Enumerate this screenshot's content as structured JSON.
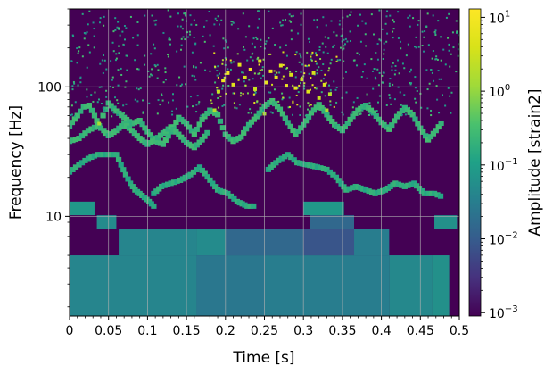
{
  "chart_data": {
    "type": "heatmap",
    "title": "",
    "xlabel": "Time [s]",
    "ylabel": "Frequency [Hz]",
    "colorbar_label": "Amplitude [strain2]",
    "colormap": "viridis",
    "xlim": [
      0,
      0.5
    ],
    "ylim": [
      1.7,
      400
    ],
    "y_scale": "log",
    "color_scale": "log",
    "color_range": [
      0.0009,
      13
    ],
    "grid": true,
    "x_ticks": [
      "0",
      "0.05",
      "0.1",
      "0.15",
      "0.2",
      "0.25",
      "0.3",
      "0.35",
      "0.4",
      "0.45",
      "0.5"
    ],
    "x_tick_values": [
      0,
      0.05,
      0.1,
      0.15,
      0.2,
      0.25,
      0.3,
      0.35,
      0.4,
      0.45,
      0.5
    ],
    "y_ticks": [
      "10",
      "100"
    ],
    "y_tick_values": [
      10,
      100
    ],
    "colorbar_ticks": [
      {
        "value": 0.001,
        "base": "10",
        "exp": "−3"
      },
      {
        "value": 0.01,
        "base": "10",
        "exp": "−2"
      },
      {
        "value": 0.1,
        "base": "10",
        "exp": "−1"
      },
      {
        "value": 1,
        "base": "10",
        "exp": "0"
      },
      {
        "value": 10,
        "base": "10",
        "exp": "1"
      }
    ],
    "background_amplitude": 0.001,
    "bands": [
      {
        "f_low": 1.7,
        "f_high": 5.0,
        "amplitude": 0.04,
        "t_start": 0.0,
        "t_end": 0.163
      },
      {
        "f_low": 1.7,
        "f_high": 5.0,
        "amplitude": 0.025,
        "t_start": 0.163,
        "t_end": 0.25
      },
      {
        "f_low": 1.7,
        "f_high": 5.0,
        "amplitude": 0.03,
        "t_start": 0.25,
        "t_end": 0.41
      },
      {
        "f_low": 1.7,
        "f_high": 5.0,
        "amplitude": 0.045,
        "t_start": 0.41,
        "t_end": 0.465
      },
      {
        "f_low": 1.7,
        "f_high": 5.0,
        "amplitude": 0.06,
        "t_start": 0.465,
        "t_end": 0.487
      },
      {
        "f_low": 5.0,
        "f_high": 8.0,
        "amplitude": 0.04,
        "t_start": 0.063,
        "t_end": 0.163
      },
      {
        "f_low": 5.0,
        "f_high": 8.0,
        "amplitude": 0.05,
        "t_start": 0.163,
        "t_end": 0.2
      },
      {
        "f_low": 5.0,
        "f_high": 8.0,
        "amplitude": 0.015,
        "t_start": 0.2,
        "t_end": 0.3
      },
      {
        "f_low": 5.0,
        "f_high": 8.0,
        "amplitude": 0.008,
        "t_start": 0.3,
        "t_end": 0.365
      },
      {
        "f_low": 5.0,
        "f_high": 8.0,
        "amplitude": 0.03,
        "t_start": 0.365,
        "t_end": 0.41
      },
      {
        "f_low": 8.0,
        "f_high": 10.2,
        "amplitude": 0.05,
        "t_start": 0.035,
        "t_end": 0.06
      },
      {
        "f_low": 8.0,
        "f_high": 10.2,
        "amplitude": 0.015,
        "t_start": 0.308,
        "t_end": 0.365
      },
      {
        "f_low": 8.0,
        "f_high": 10.2,
        "amplitude": 0.06,
        "t_start": 0.468,
        "t_end": 0.497
      },
      {
        "f_low": 10.2,
        "f_high": 13.0,
        "amplitude": 0.08,
        "t_start": 0.0,
        "t_end": 0.032
      },
      {
        "f_low": 10.2,
        "f_high": 13.0,
        "amplitude": 0.08,
        "t_start": 0.3,
        "t_end": 0.352
      }
    ],
    "ridges": [
      {
        "name": "",
        "amplitude": 0.18,
        "points": [
          [
            0.0,
            22
          ],
          [
            0.012,
            25
          ],
          [
            0.024,
            28
          ],
          [
            0.036,
            30
          ],
          [
            0.06,
            30
          ],
          [
            0.066,
            25
          ],
          [
            0.072,
            21
          ],
          [
            0.078,
            18
          ],
          [
            0.084,
            16
          ],
          [
            0.09,
            15
          ],
          [
            0.096,
            14
          ],
          [
            0.102,
            13
          ],
          [
            0.108,
            12
          ],
          [
            0.112,
            12
          ]
        ]
      },
      {
        "name": "",
        "amplitude": 0.18,
        "points": [
          [
            0.108,
            15
          ],
          [
            0.118,
            17
          ],
          [
            0.13,
            18
          ],
          [
            0.142,
            19
          ],
          [
            0.155,
            21
          ],
          [
            0.167,
            24
          ],
          [
            0.19,
            16
          ],
          [
            0.203,
            15
          ],
          [
            0.215,
            13
          ],
          [
            0.228,
            12
          ],
          [
            0.24,
            12
          ]
        ]
      },
      {
        "name": "",
        "amplitude": 0.18,
        "points": [
          [
            0.255,
            23
          ],
          [
            0.268,
            27
          ],
          [
            0.28,
            30
          ],
          [
            0.292,
            26
          ],
          [
            0.305,
            25
          ],
          [
            0.318,
            24
          ],
          [
            0.33,
            23
          ],
          [
            0.342,
            20
          ],
          [
            0.355,
            16
          ],
          [
            0.367,
            17
          ],
          [
            0.38,
            16
          ],
          [
            0.392,
            15
          ],
          [
            0.405,
            16
          ],
          [
            0.418,
            18
          ],
          [
            0.43,
            17
          ],
          [
            0.442,
            18
          ],
          [
            0.455,
            15
          ],
          [
            0.468,
            15
          ],
          [
            0.48,
            14
          ]
        ]
      },
      {
        "name": "",
        "amplitude": 0.25,
        "points": [
          [
            0.0,
            50
          ],
          [
            0.01,
            60
          ],
          [
            0.018,
            70
          ],
          [
            0.025,
            72
          ],
          [
            0.032,
            60
          ],
          [
            0.038,
            50
          ],
          [
            0.043,
            60
          ],
          [
            0.05,
            75
          ],
          [
            0.06,
            65
          ],
          [
            0.07,
            58
          ],
          [
            0.08,
            52
          ],
          [
            0.09,
            55
          ],
          [
            0.1,
            45
          ],
          [
            0.11,
            38
          ],
          [
            0.12,
            36
          ],
          [
            0.13,
            45
          ],
          [
            0.14,
            58
          ],
          [
            0.15,
            52
          ],
          [
            0.16,
            43
          ],
          [
            0.17,
            56
          ],
          [
            0.18,
            66
          ],
          [
            0.19,
            61
          ],
          [
            0.2,
            43
          ],
          [
            0.21,
            38
          ],
          [
            0.22,
            41
          ],
          [
            0.23,
            51
          ],
          [
            0.24,
            59
          ],
          [
            0.25,
            71
          ],
          [
            0.26,
            78
          ],
          [
            0.27,
            67
          ],
          [
            0.28,
            53
          ],
          [
            0.29,
            43
          ],
          [
            0.3,
            51
          ],
          [
            0.31,
            63
          ],
          [
            0.32,
            73
          ],
          [
            0.33,
            61
          ],
          [
            0.34,
            51
          ],
          [
            0.35,
            46
          ],
          [
            0.36,
            56
          ],
          [
            0.37,
            66
          ],
          [
            0.38,
            72
          ],
          [
            0.39,
            63
          ],
          [
            0.4,
            53
          ],
          [
            0.41,
            47
          ],
          [
            0.42,
            59
          ],
          [
            0.43,
            69
          ],
          [
            0.44,
            61
          ],
          [
            0.45,
            48
          ],
          [
            0.46,
            39
          ],
          [
            0.47,
            46
          ],
          [
            0.48,
            56
          ]
        ]
      },
      {
        "name": "",
        "amplitude": 0.25,
        "points": [
          [
            0.0,
            38
          ],
          [
            0.012,
            40
          ],
          [
            0.024,
            46
          ],
          [
            0.036,
            50
          ],
          [
            0.044,
            46
          ],
          [
            0.05,
            42
          ],
          [
            0.06,
            46
          ],
          [
            0.07,
            52
          ],
          [
            0.08,
            46
          ],
          [
            0.09,
            40
          ],
          [
            0.1,
            36
          ],
          [
            0.11,
            39
          ],
          [
            0.12,
            44
          ],
          [
            0.13,
            49
          ],
          [
            0.14,
            43
          ],
          [
            0.15,
            37
          ],
          [
            0.16,
            34
          ],
          [
            0.17,
            39
          ],
          [
            0.18,
            47
          ]
        ]
      }
    ],
    "hotspots": [
      {
        "t": 0.038,
        "f": 52,
        "amplitude": 1.5
      },
      {
        "t": 0.191,
        "f": 92,
        "amplitude": 3
      },
      {
        "t": 0.197,
        "f": 112,
        "amplitude": 8
      },
      {
        "t": 0.203,
        "f": 128,
        "amplitude": 10
      },
      {
        "t": 0.21,
        "f": 104,
        "amplitude": 5
      },
      {
        "t": 0.218,
        "f": 148,
        "amplitude": 6
      },
      {
        "t": 0.225,
        "f": 118,
        "amplitude": 4
      },
      {
        "t": 0.232,
        "f": 136,
        "amplitude": 9
      },
      {
        "t": 0.238,
        "f": 96,
        "amplitude": 3
      },
      {
        "t": 0.244,
        "f": 158,
        "amplitude": 5
      },
      {
        "t": 0.252,
        "f": 108,
        "amplitude": 7
      },
      {
        "t": 0.258,
        "f": 132,
        "amplitude": 10
      },
      {
        "t": 0.265,
        "f": 118,
        "amplitude": 6
      },
      {
        "t": 0.271,
        "f": 146,
        "amplitude": 5
      },
      {
        "t": 0.278,
        "f": 102,
        "amplitude": 8
      },
      {
        "t": 0.284,
        "f": 124,
        "amplitude": 4
      },
      {
        "t": 0.29,
        "f": 98,
        "amplitude": 6
      },
      {
        "t": 0.298,
        "f": 114,
        "amplitude": 3
      },
      {
        "t": 0.306,
        "f": 92,
        "amplitude": 5
      },
      {
        "t": 0.313,
        "f": 128,
        "amplitude": 4
      },
      {
        "t": 0.32,
        "f": 82,
        "amplitude": 3
      },
      {
        "t": 0.327,
        "f": 104,
        "amplitude": 5
      },
      {
        "t": 0.334,
        "f": 88,
        "amplitude": 2
      },
      {
        "t": 0.186,
        "f": 66,
        "amplitude": 2
      },
      {
        "t": 0.25,
        "f": 62,
        "amplitude": 1.5
      },
      {
        "t": 0.33,
        "f": 66,
        "amplitude": 1.5
      }
    ],
    "speckle_amplitude_range": [
      0.05,
      0.4
    ]
  }
}
